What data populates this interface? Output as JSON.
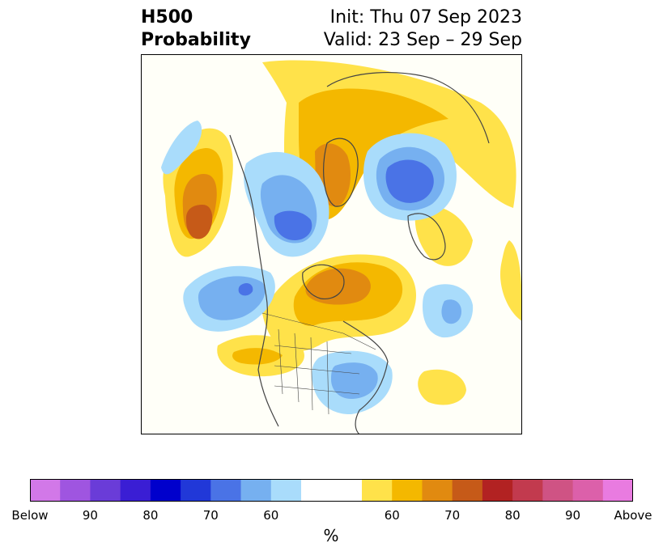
{
  "header": {
    "title_line1": "H500",
    "title_line2": "Probability",
    "init_text": "Init: Thu 07 Sep 2023",
    "valid_text": "Valid: 23 Sep – 29 Sep"
  },
  "colorbar": {
    "colors": [
      "#d278e8",
      "#9f55e0",
      "#6a3cd8",
      "#3a1ed4",
      "#0000cc",
      "#2138d8",
      "#4a73e6",
      "#76b0f0",
      "#a9dcfb",
      "#ffffff",
      "#ffe24a",
      "#f4b800",
      "#e18a10",
      "#c65a18",
      "#b22222",
      "#c23a4e",
      "#cf5384",
      "#dc60aa",
      "#e97be0"
    ],
    "tick_labels": [
      "Below",
      "90",
      "80",
      "70",
      "60",
      "60",
      "70",
      "80",
      "90",
      "Above"
    ],
    "unit": "%"
  },
  "map_legend": {
    "below_colors": [
      "#a9dcfb",
      "#76b0f0",
      "#4a73e6"
    ],
    "above_colors": [
      "#ffe24a",
      "#f4b800",
      "#e18a10",
      "#c65a18"
    ]
  }
}
